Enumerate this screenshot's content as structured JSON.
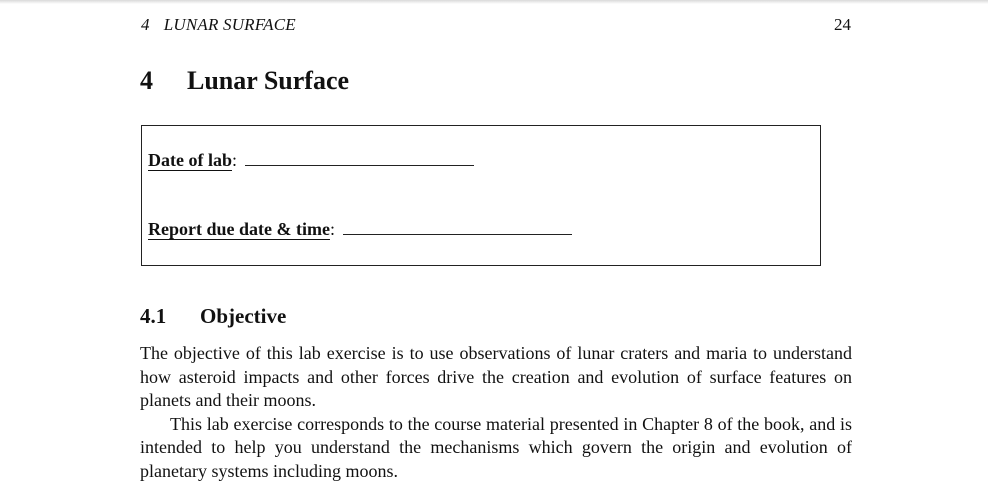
{
  "header": {
    "chapter_number": "4",
    "chapter_title": "LUNAR SURFACE",
    "page_number": "24"
  },
  "section": {
    "number": "4",
    "title": "Lunar Surface"
  },
  "lab_box": {
    "date_label": "Date of lab",
    "date_colon": ":",
    "due_label": "Report due date & time",
    "due_colon": ":"
  },
  "subsection": {
    "number": "4.1",
    "title": "Objective"
  },
  "paragraphs": [
    "The objective of this lab exercise is to use observations of lunar craters and maria to understand how asteroid impacts and other forces drive the creation and evolution of surface features on planets and their moons.",
    "This lab exercise corresponds to the course material presented in Chapter 8 of the book, and is intended to help you understand the mechanisms which govern the origin and evolution of planetary systems including moons."
  ]
}
